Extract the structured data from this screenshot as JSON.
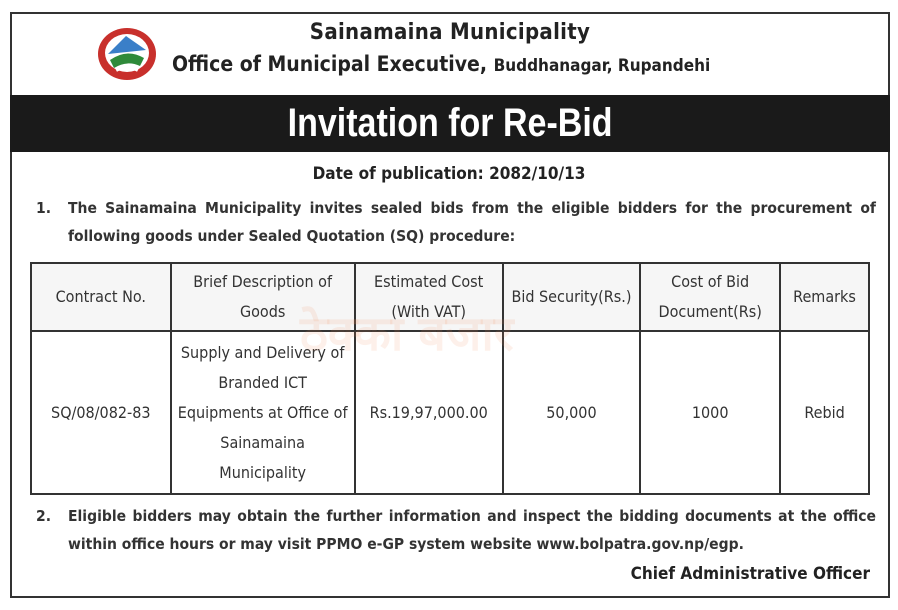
{
  "header": {
    "org": "Sainamaina Municipality",
    "office": "Office of Municipal Executive,",
    "location": "Buddhanagar, Rupandehi"
  },
  "banner": "Invitation for Re-Bid",
  "date_line": "Date of publication: 2082/10/13",
  "para1": {
    "num": "1.",
    "text": "The Sainamaina Municipality invites sealed bids from the eligible bidders for the procurement of following goods under Sealed Quotation (SQ) procedure:"
  },
  "table": {
    "headers": [
      "Contract No.",
      "Brief Description of Goods",
      "Estimated Cost (With VAT)",
      "Bid Security(Rs.)",
      "Cost of Bid Document(Rs)",
      "Remarks"
    ],
    "rows": [
      [
        "SQ/08/082-83",
        "Supply and Delivery of Branded ICT Equipments at Office of Sainamaina Municipality",
        "Rs.19,97,000.00",
        "50,000",
        "1000",
        "Rebid"
      ]
    ]
  },
  "para2": {
    "num": "2.",
    "text": "Eligible bidders may obtain the further information and inspect the bidding documents at the office within office hours or may visit PPMO e-GP system website www.bolpatra.gov.np/egp."
  },
  "signature": "Chief Administrative Officer",
  "watermark": "ठेक्का बजार"
}
